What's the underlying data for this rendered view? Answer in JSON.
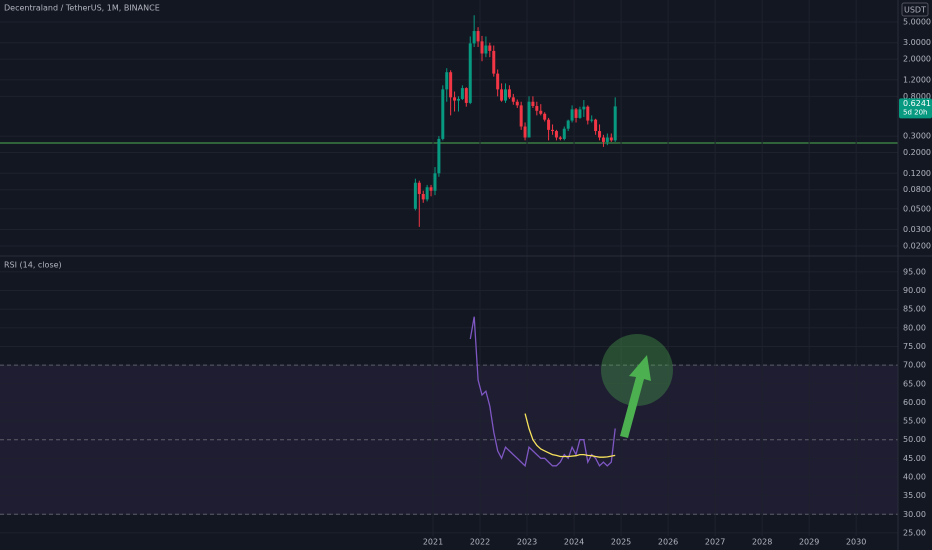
{
  "chart_data": [
    {
      "type": "candlestick",
      "title": "Decentraland / TetherUS, 1M, BINANCE",
      "currency": "USDT",
      "countdown": "5d 20h",
      "log_scale": true,
      "up_color": "#089981",
      "down_color": "#f23645",
      "x": [
        2020.625,
        2020.708,
        2020.792,
        2020.875,
        2020.958,
        2021.042,
        2021.125,
        2021.208,
        2021.292,
        2021.375,
        2021.458,
        2021.542,
        2021.625,
        2021.708,
        2021.792,
        2021.875,
        2021.958,
        2022.042,
        2022.125,
        2022.208,
        2022.292,
        2022.375,
        2022.458,
        2022.542,
        2022.625,
        2022.708,
        2022.792,
        2022.875,
        2022.958,
        2023.042,
        2023.125,
        2023.208,
        2023.292,
        2023.375,
        2023.458,
        2023.542,
        2023.625,
        2023.708,
        2023.792,
        2023.875,
        2023.958,
        2024.042,
        2024.125,
        2024.208,
        2024.292,
        2024.375,
        2024.458,
        2024.542,
        2024.625,
        2024.708,
        2024.792,
        2024.875
      ],
      "open": [
        0.05,
        0.095,
        0.072,
        0.063,
        0.085,
        0.078,
        0.12,
        0.28,
        0.95,
        1.45,
        0.78,
        0.72,
        0.75,
        0.98,
        0.68,
        2.95,
        4.0,
        3.1,
        2.3,
        2.8,
        2.45,
        1.4,
        0.95,
        0.72,
        0.95,
        0.78,
        0.7,
        0.64,
        0.38,
        0.29,
        0.7,
        0.63,
        0.56,
        0.52,
        0.45,
        0.35,
        0.34,
        0.29,
        0.28,
        0.36,
        0.44,
        0.58,
        0.47,
        0.58,
        0.62,
        0.44,
        0.45,
        0.34,
        0.29,
        0.26,
        0.29,
        0.27
      ],
      "high": [
        0.105,
        0.1,
        0.078,
        0.09,
        0.09,
        0.14,
        0.3,
        1.05,
        1.6,
        1.52,
        0.9,
        0.8,
        1.05,
        1.0,
        3.5,
        5.9,
        4.4,
        3.55,
        3.5,
        3.0,
        2.8,
        1.55,
        1.1,
        1.1,
        1.05,
        0.85,
        0.74,
        0.7,
        0.42,
        0.8,
        0.8,
        0.7,
        0.66,
        0.54,
        0.47,
        0.4,
        0.35,
        0.3,
        0.38,
        0.45,
        0.64,
        0.6,
        0.62,
        0.73,
        0.64,
        0.5,
        0.46,
        0.4,
        0.31,
        0.32,
        0.32,
        0.78
      ],
      "low": [
        0.048,
        0.032,
        0.058,
        0.06,
        0.068,
        0.07,
        0.11,
        0.27,
        0.7,
        0.5,
        0.55,
        0.55,
        0.73,
        0.62,
        0.66,
        2.7,
        2.7,
        1.9,
        2.1,
        2.1,
        1.3,
        0.8,
        0.7,
        0.68,
        0.75,
        0.65,
        0.6,
        0.35,
        0.27,
        0.29,
        0.6,
        0.5,
        0.5,
        0.43,
        0.27,
        0.31,
        0.27,
        0.27,
        0.27,
        0.34,
        0.42,
        0.42,
        0.46,
        0.48,
        0.4,
        0.42,
        0.31,
        0.27,
        0.23,
        0.24,
        0.26,
        0.26
      ],
      "close": [
        0.095,
        0.072,
        0.063,
        0.085,
        0.078,
        0.12,
        0.28,
        0.95,
        1.45,
        0.78,
        0.72,
        0.75,
        0.98,
        0.68,
        2.95,
        4.0,
        3.1,
        2.3,
        2.8,
        2.45,
        1.4,
        0.95,
        0.72,
        0.95,
        0.78,
        0.7,
        0.64,
        0.38,
        0.29,
        0.7,
        0.63,
        0.56,
        0.52,
        0.45,
        0.35,
        0.34,
        0.29,
        0.28,
        0.36,
        0.44,
        0.58,
        0.47,
        0.58,
        0.62,
        0.44,
        0.45,
        0.34,
        0.29,
        0.26,
        0.29,
        0.27,
        0.6241
      ],
      "xlim": [
        2011.79,
        2030.89
      ],
      "ylim": [
        0.016,
        8.6
      ],
      "yticks": [
        {
          "value": 5,
          "label": "5.0000"
        },
        {
          "value": 3,
          "label": "3.0000"
        },
        {
          "value": 2,
          "label": "2.0000"
        },
        {
          "value": 1.2,
          "label": "1.2000"
        },
        {
          "value": 0.8,
          "label": "0.8000"
        },
        {
          "value": 0.3,
          "label": "0.3000"
        },
        {
          "value": 0.2,
          "label": "0.2000"
        },
        {
          "value": 0.12,
          "label": "0.1200"
        },
        {
          "value": 0.08,
          "label": "0.0800"
        },
        {
          "value": 0.05,
          "label": "0.0500"
        },
        {
          "value": 0.03,
          "label": "0.0300"
        },
        {
          "value": 0.02,
          "label": "0.0200"
        }
      ],
      "horizontal_line": {
        "value": 0.253,
        "color": "#4caf50"
      },
      "grid": true
    },
    {
      "type": "line",
      "title": "RSI (14, close)",
      "x": [
        2020.625,
        2020.708,
        2020.792,
        2020.875,
        2020.958,
        2021.042,
        2021.125,
        2021.208,
        2021.292,
        2021.375,
        2021.458,
        2021.542,
        2021.625,
        2021.708,
        2021.792,
        2021.875,
        2021.958,
        2022.042,
        2022.125,
        2022.208,
        2022.292,
        2022.375,
        2022.458,
        2022.542,
        2022.625,
        2022.708,
        2022.792,
        2022.875,
        2022.958,
        2023.042,
        2023.125,
        2023.208,
        2023.292,
        2023.375,
        2023.458,
        2023.542,
        2023.625,
        2023.708,
        2023.792,
        2023.875,
        2023.958,
        2024.042,
        2024.125,
        2024.208,
        2024.292,
        2024.375,
        2024.458,
        2024.542,
        2024.625,
        2024.708,
        2024.792,
        2024.875
      ],
      "series": [
        {
          "color": "#7e57c2",
          "values": [
            null,
            null,
            null,
            null,
            null,
            null,
            null,
            null,
            null,
            null,
            null,
            null,
            null,
            null,
            77,
            83,
            66,
            62,
            63,
            59,
            52,
            47,
            45,
            48,
            47,
            46,
            45,
            44,
            43,
            48,
            47,
            46,
            45,
            45,
            44,
            43,
            43,
            44,
            46,
            45,
            48,
            46,
            50,
            50,
            44,
            46,
            45,
            43,
            44,
            43,
            44,
            53
          ]
        },
        {
          "color": "#f7e25c",
          "values": [
            null,
            null,
            null,
            null,
            null,
            null,
            null,
            null,
            null,
            null,
            null,
            null,
            null,
            null,
            null,
            null,
            null,
            null,
            null,
            null,
            null,
            null,
            null,
            null,
            null,
            null,
            null,
            null,
            57,
            53,
            50,
            48.5,
            47.5,
            47,
            46.5,
            46,
            45.8,
            45.5,
            45.5,
            45.5,
            45.6,
            45.7,
            46,
            46,
            45.8,
            45.7,
            45.5,
            45.3,
            45.3,
            45.4,
            45.6,
            45.8
          ]
        }
      ],
      "bands": [
        70,
        50,
        30
      ],
      "band_color": "#7e57c2",
      "xlim": [
        2011.79,
        2030.89
      ],
      "ylim": [
        23.1,
        99
      ],
      "xticks": [
        2021,
        2022,
        2023,
        2024,
        2025,
        2026,
        2027,
        2028,
        2029,
        2030
      ],
      "yticks": [
        {
          "value": 95,
          "label": "95.00"
        },
        {
          "value": 90,
          "label": "90.00"
        },
        {
          "value": 85,
          "label": "85.00"
        },
        {
          "value": 80,
          "label": "80.00"
        },
        {
          "value": 75,
          "label": "75.00"
        },
        {
          "value": 70,
          "label": "70.00"
        },
        {
          "value": 65,
          "label": "65.00"
        },
        {
          "value": 60,
          "label": "60.00"
        },
        {
          "value": 55,
          "label": "55.00"
        },
        {
          "value": 50,
          "label": "50.00"
        },
        {
          "value": 45,
          "label": "45.00"
        },
        {
          "value": 40,
          "label": "40.00"
        },
        {
          "value": 35,
          "label": "35.00"
        },
        {
          "value": 30,
          "label": "30.00"
        },
        {
          "value": 25,
          "label": "25.00"
        }
      ],
      "grid": true
    }
  ]
}
